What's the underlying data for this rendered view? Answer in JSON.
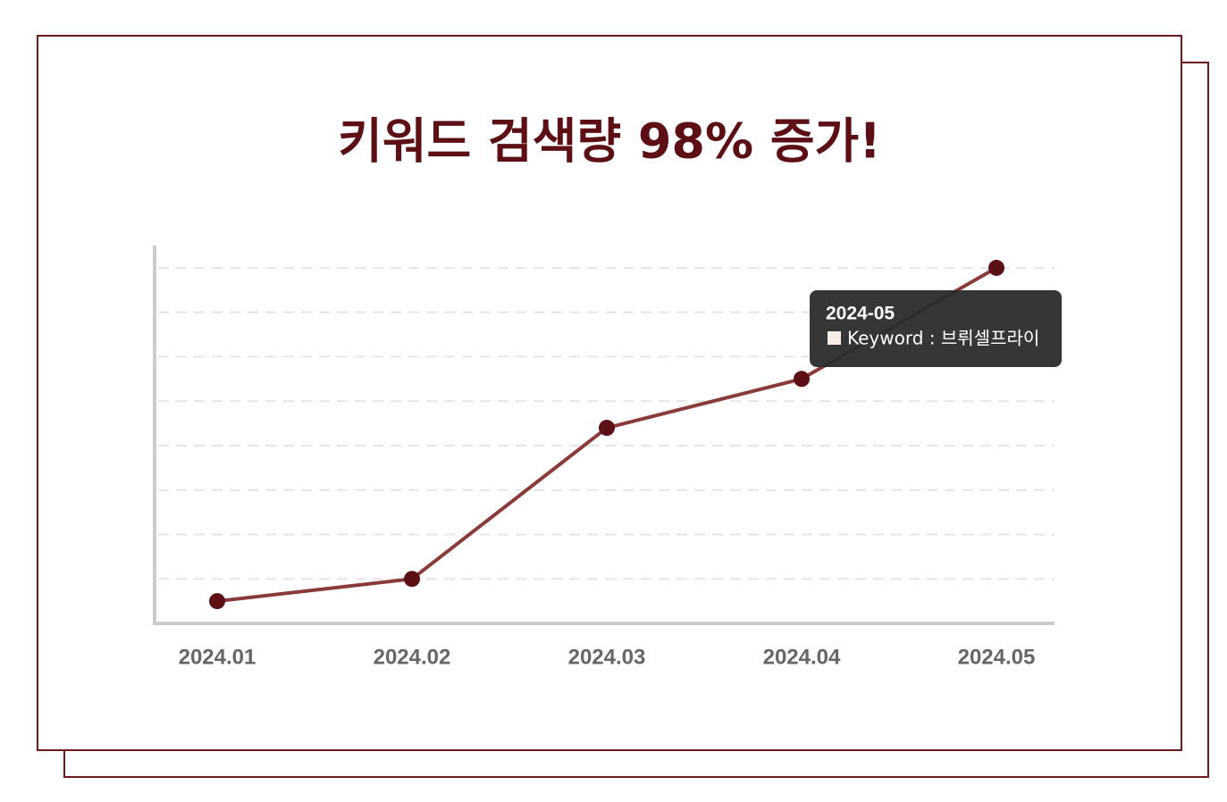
{
  "chart_data": {
    "type": "line",
    "title": "키워드 검색량 98% 증가!",
    "categories": [
      "2024.01",
      "2024.02",
      "2024.03",
      "2024.04",
      "2024.05"
    ],
    "values": [
      0.5,
      1,
      4.4,
      5.5,
      8
    ],
    "color": "#8b3a3a",
    "marker_color": "#5c0f14",
    "ylim": [
      0,
      8.5
    ],
    "yticks": [
      1,
      2,
      3,
      4,
      5,
      6,
      7,
      8
    ],
    "grid": true,
    "tooltip": {
      "title": "2024-05",
      "label": "Keyword : 브뤼셀프라이"
    }
  }
}
